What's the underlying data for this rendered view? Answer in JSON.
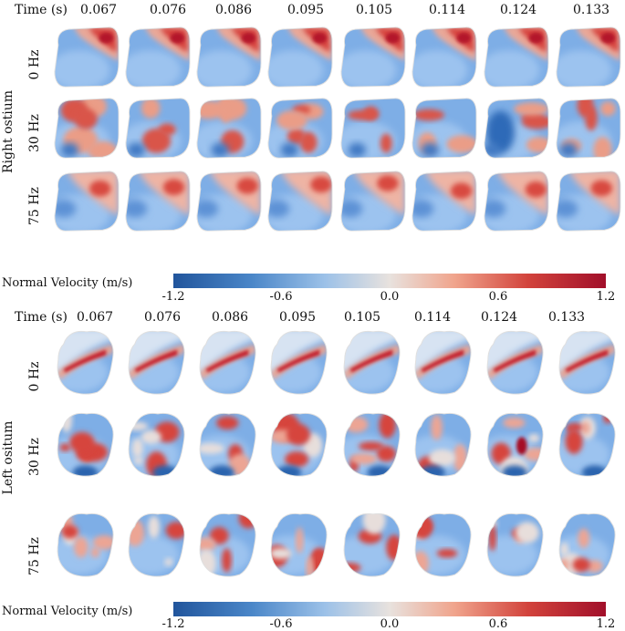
{
  "top_panel": {
    "time_label": "Time (s)",
    "times": [
      "0.067",
      "0.076",
      "0.086",
      "0.095",
      "0.105",
      "0.114",
      "0.124",
      "0.133"
    ],
    "side_label": "Right ostium",
    "rows": [
      "0 Hz",
      "30 Hz",
      "75 Hz"
    ]
  },
  "top_colorbar": {
    "label": "Normal Velocity (m/s)",
    "ticks": [
      "-1.2",
      "-0.6",
      "0.0",
      "0.6",
      "1.2"
    ]
  },
  "bottom_panel": {
    "time_label": "Time (s)",
    "times": [
      "0.067",
      "0.076",
      "0.086",
      "0.095",
      "0.105",
      "0.114",
      "0.124",
      "0.133"
    ],
    "side_label": "Left ositum",
    "rows": [
      "0 Hz",
      "30 Hz",
      "75 Hz"
    ]
  },
  "bottom_colorbar": {
    "label": "Normal Velocity (m/s)",
    "ticks": [
      "-1.2",
      "-0.6",
      "0.0",
      "0.6",
      "1.2"
    ]
  },
  "colors": {
    "neg": "#2166ac",
    "mid": "#e8e4e2",
    "pos": "#a50f26"
  }
}
